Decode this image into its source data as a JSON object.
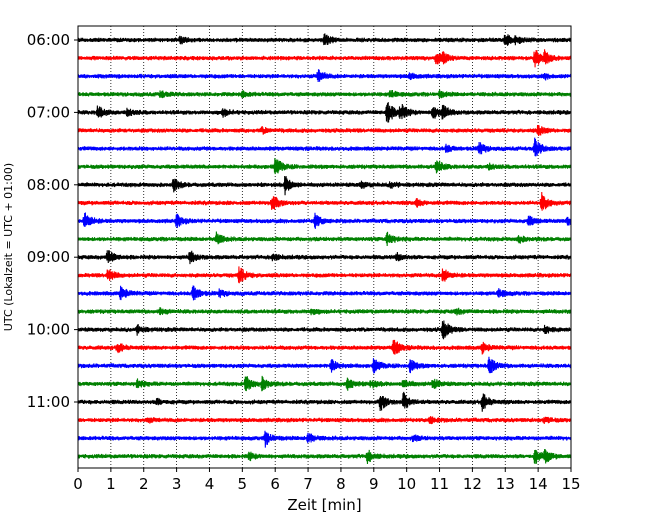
{
  "chart_data": {
    "type": "line",
    "title": "",
    "xlabel": "Zeit  [min]",
    "ylabel": "UTC (Lokalzeit = UTC + 01:00)",
    "x_ticks": [
      "0",
      "1",
      "2",
      "3",
      "4",
      "5",
      "6",
      "7",
      "8",
      "9",
      "10",
      "11",
      "12",
      "13",
      "14",
      "15"
    ],
    "xlim": [
      0,
      15
    ],
    "y_tick_labels": [
      "06:00",
      "07:00",
      "08:00",
      "09:00",
      "10:00",
      "11:00"
    ],
    "row_interval": "15 min",
    "grid": "vertical dotted lines at each minute",
    "legend": "none",
    "colors": [
      "#000000",
      "#ff0000",
      "#0000ff",
      "#008000"
    ],
    "series": [
      {
        "start": "06:00",
        "color": "#000000",
        "events": [
          [
            3.1,
            0.25
          ],
          [
            7.5,
            0.55
          ],
          [
            13.0,
            0.6
          ],
          [
            13.3,
            0.3
          ]
        ]
      },
      {
        "start": "06:15",
        "color": "#ff0000",
        "events": [
          [
            10.9,
            0.55
          ],
          [
            11.1,
            0.35
          ],
          [
            13.9,
            0.9
          ],
          [
            14.2,
            0.5
          ]
        ]
      },
      {
        "start": "06:30",
        "color": "#0000ff",
        "events": [
          [
            7.3,
            0.55
          ],
          [
            10.1,
            0.25
          ],
          [
            14.2,
            0.2
          ]
        ]
      },
      {
        "start": "06:45",
        "color": "#008000",
        "events": [
          [
            2.5,
            0.3
          ],
          [
            5.0,
            0.25
          ],
          [
            9.5,
            0.3
          ],
          [
            11.0,
            0.25
          ]
        ]
      },
      {
        "start": "07:00",
        "color": "#000000",
        "events": [
          [
            0.6,
            0.6
          ],
          [
            9.4,
            1.1
          ],
          [
            9.8,
            0.8
          ],
          [
            10.8,
            0.7
          ],
          [
            11.1,
            0.55
          ],
          [
            1.5,
            0.35
          ],
          [
            4.4,
            0.35
          ]
        ]
      },
      {
        "start": "07:15",
        "color": "#ff0000",
        "events": [
          [
            5.6,
            0.25
          ],
          [
            14.0,
            0.45
          ]
        ]
      },
      {
        "start": "07:30",
        "color": "#0000ff",
        "events": [
          [
            12.2,
            0.55
          ],
          [
            13.9,
            0.85
          ],
          [
            11.2,
            0.3
          ]
        ]
      },
      {
        "start": "07:45",
        "color": "#008000",
        "events": [
          [
            6.0,
            0.85
          ],
          [
            10.9,
            0.65
          ],
          [
            12.5,
            0.25
          ]
        ]
      },
      {
        "start": "08:00",
        "color": "#000000",
        "events": [
          [
            2.9,
            0.55
          ],
          [
            6.3,
            0.8
          ],
          [
            8.6,
            0.3
          ],
          [
            9.5,
            0.25
          ]
        ]
      },
      {
        "start": "08:15",
        "color": "#ff0000",
        "events": [
          [
            5.9,
            0.75
          ],
          [
            14.1,
            0.85
          ],
          [
            10.3,
            0.3
          ]
        ]
      },
      {
        "start": "08:30",
        "color": "#0000ff",
        "events": [
          [
            0.2,
            0.85
          ],
          [
            3.0,
            0.55
          ],
          [
            7.2,
            0.65
          ],
          [
            13.7,
            0.45
          ],
          [
            14.9,
            0.35
          ]
        ]
      },
      {
        "start": "08:45",
        "color": "#008000",
        "events": [
          [
            4.2,
            0.55
          ],
          [
            9.4,
            0.6
          ],
          [
            13.4,
            0.3
          ]
        ]
      },
      {
        "start": "09:00",
        "color": "#000000",
        "events": [
          [
            0.9,
            0.65
          ],
          [
            3.4,
            0.55
          ],
          [
            5.9,
            0.3
          ],
          [
            9.7,
            0.35
          ]
        ]
      },
      {
        "start": "09:15",
        "color": "#ff0000",
        "events": [
          [
            0.9,
            0.6
          ],
          [
            4.9,
            0.75
          ],
          [
            11.1,
            0.65
          ]
        ]
      },
      {
        "start": "09:30",
        "color": "#0000ff",
        "events": [
          [
            1.3,
            0.6
          ],
          [
            3.5,
            0.7
          ],
          [
            4.3,
            0.3
          ],
          [
            12.8,
            0.35
          ]
        ]
      },
      {
        "start": "09:45",
        "color": "#008000",
        "events": [
          [
            2.5,
            0.25
          ],
          [
            7.1,
            0.25
          ],
          [
            11.5,
            0.25
          ]
        ]
      },
      {
        "start": "10:00",
        "color": "#000000",
        "events": [
          [
            1.8,
            0.35
          ],
          [
            11.1,
            1.0
          ],
          [
            14.2,
            0.35
          ]
        ]
      },
      {
        "start": "10:15",
        "color": "#ff0000",
        "events": [
          [
            1.2,
            0.45
          ],
          [
            9.6,
            0.75
          ],
          [
            12.3,
            0.45
          ]
        ]
      },
      {
        "start": "10:30",
        "color": "#0000ff",
        "events": [
          [
            7.7,
            0.6
          ],
          [
            9.0,
            0.65
          ],
          [
            10.1,
            0.55
          ],
          [
            12.5,
            0.85
          ]
        ]
      },
      {
        "start": "10:45",
        "color": "#008000",
        "events": [
          [
            1.8,
            0.35
          ],
          [
            5.1,
            0.75
          ],
          [
            5.6,
            0.55
          ],
          [
            8.2,
            0.55
          ],
          [
            8.9,
            0.35
          ],
          [
            10.8,
            0.45
          ],
          [
            9.9,
            0.4
          ]
        ]
      },
      {
        "start": "11:00",
        "color": "#000000",
        "events": [
          [
            9.2,
            0.75
          ],
          [
            9.9,
            0.8
          ],
          [
            12.3,
            0.8
          ],
          [
            2.4,
            0.25
          ]
        ]
      },
      {
        "start": "11:15",
        "color": "#ff0000",
        "events": [
          [
            2.1,
            0.2
          ],
          [
            10.7,
            0.3
          ],
          [
            14.2,
            0.3
          ]
        ]
      },
      {
        "start": "11:30",
        "color": "#0000ff",
        "events": [
          [
            5.7,
            0.65
          ],
          [
            7.0,
            0.5
          ],
          [
            10.2,
            0.25
          ]
        ]
      },
      {
        "start": "11:45",
        "color": "#008000",
        "events": [
          [
            8.8,
            0.55
          ],
          [
            13.9,
            0.65
          ],
          [
            14.2,
            0.5
          ],
          [
            5.2,
            0.3
          ]
        ]
      }
    ]
  }
}
